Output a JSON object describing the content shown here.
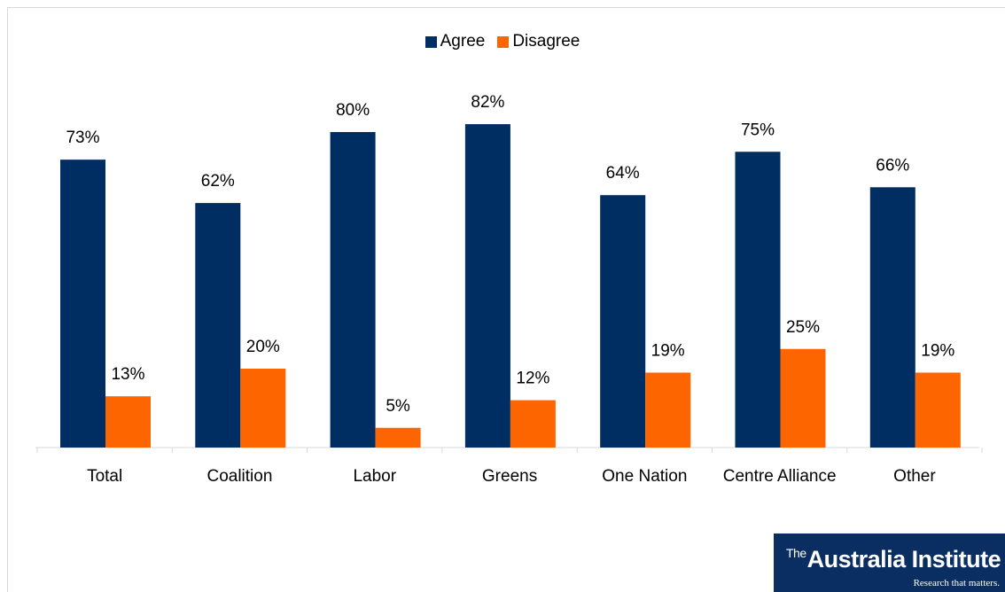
{
  "chart_data": {
    "type": "bar",
    "categories": [
      "Total",
      "Coalition",
      "Labor",
      "Greens",
      "One Nation",
      "Centre Alliance",
      "Other"
    ],
    "series": [
      {
        "name": "Agree",
        "values": [
          73,
          62,
          80,
          82,
          64,
          75,
          66
        ],
        "color": "#002d62"
      },
      {
        "name": "Disagree",
        "values": [
          13,
          20,
          5,
          12,
          19,
          25,
          19
        ],
        "color": "#fd6500"
      }
    ],
    "value_suffix": "%",
    "ylim": [
      0,
      100
    ],
    "grid": false,
    "legend_position": "top-center"
  },
  "logo": {
    "the": "The",
    "name": "Australia Institute",
    "tagline": "Research that matters."
  }
}
